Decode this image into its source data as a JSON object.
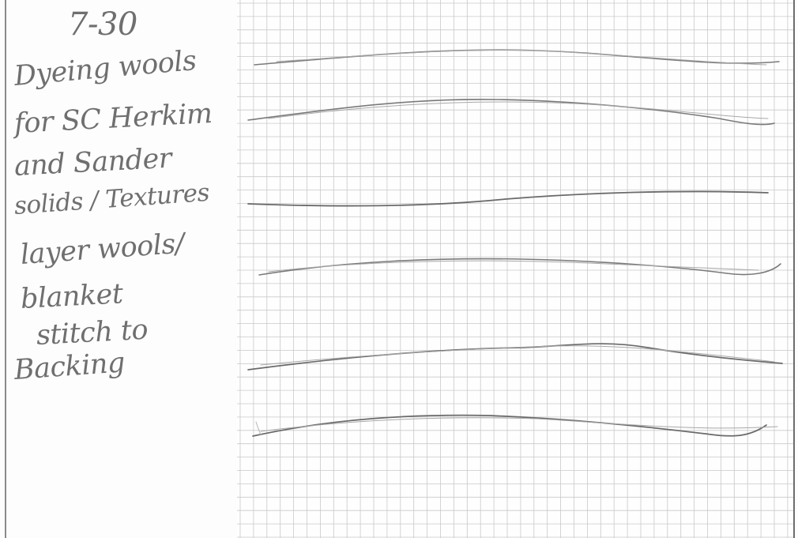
{
  "notes": {
    "date": "7-30",
    "lines": [
      "Dyeing wools",
      "for SC Herkim",
      "and Sander",
      "solids / Textures",
      "layer wools/",
      "blanket",
      "stitch to",
      "Backing"
    ]
  },
  "colors": {
    "ink": "#6f6f6f",
    "grid": "#c9c9c9",
    "pencil": "#7a7a7a"
  }
}
